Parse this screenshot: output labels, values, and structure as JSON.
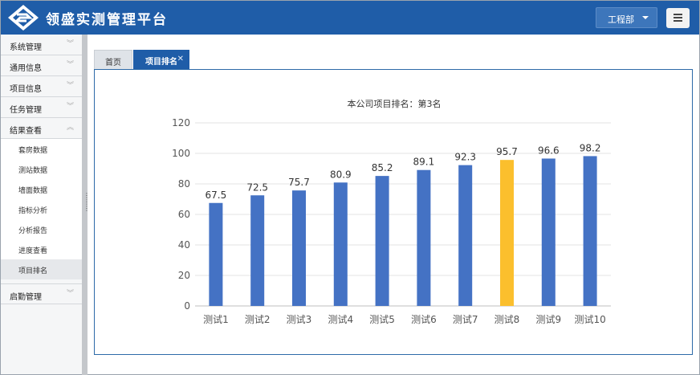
{
  "header": {
    "title": "领盛实测管理平台",
    "dept": "工程部"
  },
  "sidebar": {
    "groups": [
      {
        "label": "系统管理",
        "chevron": "double-chevron-down"
      },
      {
        "label": "通用信息",
        "chevron": "double-chevron-down"
      },
      {
        "label": "项目信息",
        "chevron": "double-chevron-down"
      },
      {
        "label": "任务管理",
        "chevron": "double-chevron-down"
      },
      {
        "label": "结果查看",
        "chevron": "double-chevron-up"
      },
      {
        "label": "启勤管理",
        "chevron": "double-chevron-down"
      }
    ],
    "subitems": [
      "套房数据",
      "测站数据",
      "墙面数据",
      "指标分析",
      "分析报告",
      "进度查看",
      "项目排名"
    ],
    "active_subitem": "项目排名"
  },
  "tabs": [
    {
      "label": "首页"
    },
    {
      "label": "项目排名",
      "active": true
    }
  ],
  "colors": {
    "primary": "#1f5da8",
    "bar": "#4472c4",
    "highlight": "#fbbf2d"
  },
  "chart_data": {
    "type": "bar",
    "title": "本公司项目排名：第3名",
    "categories": [
      "测试1",
      "测试2",
      "测试3",
      "测试4",
      "测试5",
      "测试6",
      "测试7",
      "测试8",
      "测试9",
      "测试10"
    ],
    "values": [
      67.5,
      72.5,
      75.7,
      80.9,
      85.2,
      89.1,
      92.3,
      95.7,
      96.6,
      98.2
    ],
    "highlight_category": "测试8",
    "ylim": [
      0,
      120
    ],
    "yticks": [
      0,
      20,
      40,
      60,
      80,
      100,
      120
    ],
    "grid": true,
    "xlabel": "",
    "ylabel": ""
  }
}
